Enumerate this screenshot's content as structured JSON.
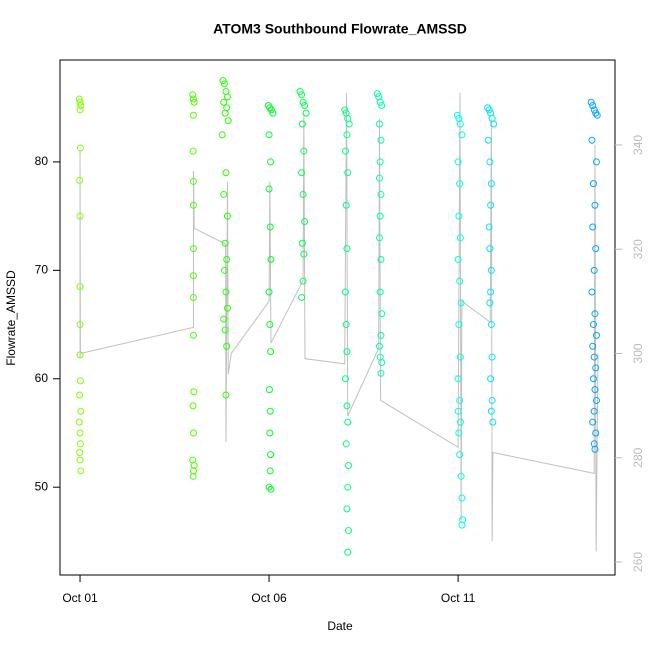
{
  "chart_data": {
    "type": "scatter",
    "title": "ATOM3 Southbound Flowrate_AMSSD",
    "x_label": "Date",
    "y_label": "Flowrate_AMSSD",
    "xlim": [
      0.47,
      15.15
    ],
    "xticks": [
      {
        "value": 1,
        "label": "Oct 01"
      },
      {
        "value": 6,
        "label": "Oct 06"
      },
      {
        "value": 11,
        "label": "Oct 11"
      }
    ],
    "ylim": [
      41.9,
      89.4
    ],
    "yticks": [
      50,
      60,
      70,
      80
    ],
    "y2lim": [
      257.5,
      356.3
    ],
    "y2ticks": [
      260,
      280,
      300,
      320,
      340
    ],
    "series": [
      {
        "color": "#7fff00",
        "x": [
          0.98,
          1.0,
          1.02,
          1.0,
          1.01,
          0.99,
          1.0,
          1.0,
          1.0,
          1.0,
          1.01,
          0.99,
          1.02,
          0.98,
          1.0,
          1.01,
          0.99,
          1.0,
          1.02
        ],
        "values": [
          85.8,
          85.5,
          85.2,
          84.8,
          81.3,
          78.3,
          75,
          68.5,
          65,
          62.2,
          59.8,
          58.5,
          57,
          56,
          55,
          54,
          53.2,
          52.5,
          51.5
        ]
      },
      {
        "color": "#4cff00",
        "x": [
          3.98,
          4.0,
          4.02,
          4.0,
          3.99,
          4.0,
          4.0,
          4.0,
          4.0,
          4.0,
          4.0,
          4.01,
          3.99,
          4.0,
          3.98,
          4.02,
          4.0,
          3.99
        ],
        "values": [
          86.2,
          85.8,
          85.5,
          84.3,
          81,
          78.2,
          76,
          72,
          69.5,
          67.5,
          64,
          58.8,
          57.5,
          55,
          52.5,
          52,
          51.5,
          51
        ]
      },
      {
        "color": "#26ff00",
        "x": [
          4.78,
          4.82,
          4.86,
          4.9,
          4.8,
          4.88,
          4.84,
          4.92,
          4.76,
          4.86,
          4.8,
          4.9,
          4.84,
          4.88,
          4.82,
          4.86,
          4.9,
          4.8,
          4.84,
          4.88,
          4.86
        ],
        "values": [
          87.5,
          87.2,
          86.5,
          86,
          85.5,
          85,
          84.5,
          83.8,
          82.5,
          79,
          77,
          75,
          72.5,
          71,
          70,
          68,
          66.5,
          65.5,
          64.5,
          63,
          58.5
        ]
      },
      {
        "color": "#00ff26",
        "x": [
          5.98,
          6.02,
          6.06,
          6.1,
          6.0,
          6.04,
          6.0,
          6.03,
          6.05,
          6.0,
          6.02,
          6.04,
          6.01,
          6.03,
          6.02,
          6.04,
          6.03,
          6.0,
          6.05
        ],
        "values": [
          85.2,
          85,
          84.8,
          84.5,
          82.5,
          80,
          77.5,
          74,
          71,
          68,
          65,
          62.5,
          59,
          57,
          55,
          53,
          51.5,
          50,
          49.8
        ]
      },
      {
        "color": "#00ff4c",
        "x": [
          6.82,
          6.86,
          6.9,
          6.94,
          6.98,
          6.88,
          6.92,
          6.86,
          6.9,
          6.94,
          6.88,
          6.92,
          6.9,
          6.86
        ],
        "values": [
          86.5,
          86.2,
          85.5,
          85.2,
          84.5,
          83.5,
          81,
          79,
          77,
          74.5,
          72.5,
          71.5,
          69,
          67.5
        ]
      },
      {
        "color": "#00ff80",
        "x": [
          8.0,
          8.04,
          8.08,
          8.12,
          8.06,
          8.02,
          8.08,
          8.04,
          8.06,
          8.02,
          8.04,
          8.06,
          8.02,
          8.06,
          8.08,
          8.04,
          8.1,
          8.08,
          8.06,
          8.1,
          8.08
        ],
        "values": [
          84.8,
          84.5,
          84,
          83.5,
          82.5,
          81,
          79,
          76,
          72,
          68,
          65,
          62.5,
          60,
          57.5,
          56,
          54,
          52,
          50,
          48,
          46,
          44
        ]
      },
      {
        "color": "#00ffa6",
        "x": [
          8.86,
          8.9,
          8.94,
          8.98,
          8.92,
          8.96,
          8.94,
          8.92,
          8.96,
          8.94,
          8.92,
          8.96,
          8.94,
          8.98,
          8.96,
          8.92,
          8.94,
          8.98,
          8.96
        ],
        "values": [
          86.3,
          86,
          85.5,
          85.2,
          83.5,
          82,
          80,
          78.5,
          77,
          75,
          73,
          71,
          68,
          66,
          64,
          63,
          62,
          61.5,
          60.5
        ]
      },
      {
        "color": "#00ffe6",
        "x": [
          10.98,
          11.02,
          11.06,
          11.1,
          11.0,
          11.04,
          11.02,
          11.06,
          11.0,
          11.04,
          11.08,
          11.02,
          11.06,
          11.0,
          11.04,
          11.0,
          11.06,
          11.02,
          11.04,
          11.08,
          11.1,
          11.12,
          11.1
        ],
        "values": [
          84.3,
          84,
          83.5,
          82.5,
          80,
          78,
          75,
          73,
          71,
          69,
          67,
          65,
          62,
          60,
          58,
          57,
          56,
          55,
          53,
          51,
          49,
          47,
          46.5
        ]
      },
      {
        "color": "#00e6ff",
        "x": [
          11.78,
          11.82,
          11.86,
          11.9,
          11.94,
          11.8,
          11.84,
          11.88,
          11.86,
          11.82,
          11.84,
          11.88,
          11.86,
          11.84,
          11.88,
          11.9,
          11.86,
          11.9,
          11.88,
          11.92
        ],
        "values": [
          85,
          84.8,
          84.5,
          84,
          83.5,
          82,
          80,
          78,
          76,
          74,
          72,
          70,
          68,
          67,
          65,
          62,
          60,
          58,
          57,
          56
        ]
      },
      {
        "color": "#00a6ff",
        "x": [
          14.52,
          14.56,
          14.6,
          14.64,
          14.68,
          14.54,
          14.66,
          14.58,
          14.62,
          14.56,
          14.64,
          14.6,
          14.54,
          14.62,
          14.58,
          14.66,
          14.56,
          14.6,
          14.64,
          14.58,
          14.62,
          14.66,
          14.6,
          14.56,
          14.64,
          14.6,
          14.62
        ],
        "values": [
          85.5,
          85.2,
          84.8,
          84.5,
          84.3,
          82,
          80,
          78,
          76,
          74,
          72,
          70,
          68,
          66,
          65,
          64,
          63,
          62,
          61,
          60,
          59,
          58,
          57,
          56,
          55,
          54,
          53.5
        ]
      },
      {
        "type": "line",
        "axis": "y2",
        "color": "#c0c0c0",
        "x": [
          1.0,
          1.0,
          1.01,
          4.0,
          4.0,
          4.02,
          4.85,
          4.86,
          4.9,
          4.92,
          5.0,
          6.0,
          6.02,
          6.05,
          6.9,
          6.92,
          6.95,
          8.0,
          8.05,
          8.08,
          8.9,
          8.92,
          8.95,
          11.0,
          11.05,
          11.08,
          11.1,
          11.85,
          11.88,
          11.9,
          11.92,
          14.6,
          14.62,
          14.65,
          14.7
        ],
        "values": [
          299,
          339,
          300,
          305,
          335,
          324,
          321,
          283,
          333,
          296,
          300,
          310,
          333,
          302,
          314,
          346,
          299,
          298,
          350,
          288,
          301,
          345,
          291,
          282,
          350,
          268,
          310,
          306,
          345,
          264,
          281,
          277,
          340,
          262,
          300
        ]
      }
    ]
  }
}
